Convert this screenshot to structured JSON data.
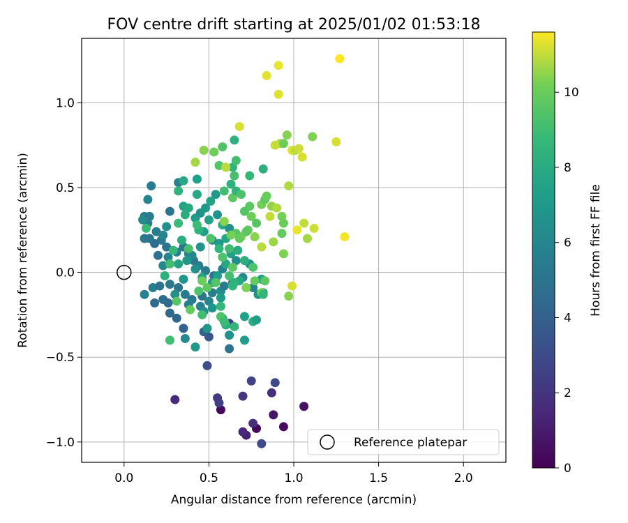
{
  "chart_data": {
    "type": "scatter",
    "title": "FOV centre drift starting at 2025/01/02 01:53:18",
    "xlabel": "Angular distance from reference (arcmin)",
    "ylabel": "Rotation from reference (arcmin)",
    "xlim": [
      -0.25,
      2.25
    ],
    "ylim": [
      -1.12,
      1.38
    ],
    "xticks": [
      0.0,
      0.5,
      1.0,
      1.5,
      2.0
    ],
    "xtick_labels": [
      "0.0",
      "0.5",
      "1.0",
      "1.5",
      "2.0"
    ],
    "yticks": [
      -1.0,
      -0.5,
      0.0,
      0.5,
      1.0
    ],
    "ytick_labels": [
      "−1.0",
      "−0.5",
      "0.0",
      "0.5",
      "1.0"
    ],
    "grid": true,
    "legend": {
      "entries": [
        "Reference platepar"
      ],
      "placement": "lower-right"
    },
    "reference_point": {
      "x": 0.0,
      "y": 0.0,
      "marker": "open-circle"
    },
    "colorbar": {
      "label": "Hours from first FF file",
      "colormap": "viridis",
      "range": [
        0,
        11.6
      ],
      "ticks": [
        0,
        2,
        4,
        6,
        8,
        10
      ],
      "tick_labels": [
        "0",
        "2",
        "4",
        "6",
        "8",
        "10"
      ]
    },
    "points": [
      {
        "x": 0.57,
        "y": -0.81,
        "c": 0.3
      },
      {
        "x": 0.78,
        "y": -0.92,
        "c": 0.2
      },
      {
        "x": 0.94,
        "y": -0.91,
        "c": 0.4
      },
      {
        "x": 1.06,
        "y": -0.79,
        "c": 0.6
      },
      {
        "x": 0.88,
        "y": -0.84,
        "c": 0.8
      },
      {
        "x": 0.72,
        "y": -0.96,
        "c": 1.2
      },
      {
        "x": 0.7,
        "y": -0.94,
        "c": 1.5
      },
      {
        "x": 0.76,
        "y": -0.89,
        "c": 1.7
      },
      {
        "x": 0.3,
        "y": -0.75,
        "c": 1.6
      },
      {
        "x": 0.87,
        "y": -0.71,
        "c": 1.8
      },
      {
        "x": 0.7,
        "y": -0.73,
        "c": 2.0
      },
      {
        "x": 0.55,
        "y": -0.74,
        "c": 2.3
      },
      {
        "x": 0.56,
        "y": -0.77,
        "c": 2.5
      },
      {
        "x": 0.75,
        "y": -0.64,
        "c": 2.6
      },
      {
        "x": 0.89,
        "y": -0.65,
        "c": 2.9
      },
      {
        "x": 0.81,
        "y": -1.01,
        "c": 3.0
      },
      {
        "x": 0.49,
        "y": -0.55,
        "c": 3.1
      },
      {
        "x": 0.62,
        "y": -0.3,
        "c": 2.4
      },
      {
        "x": 0.5,
        "y": -0.38,
        "c": 3.6
      },
      {
        "x": 0.47,
        "y": -0.35,
        "c": 4.1
      },
      {
        "x": 0.35,
        "y": -0.33,
        "c": 4.0
      },
      {
        "x": 0.62,
        "y": -0.45,
        "c": 4.9
      },
      {
        "x": 0.31,
        "y": -0.27,
        "c": 4.3
      },
      {
        "x": 0.27,
        "y": -0.24,
        "c": 4.5
      },
      {
        "x": 0.26,
        "y": -0.18,
        "c": 4.6
      },
      {
        "x": 0.18,
        "y": -0.18,
        "c": 4.6
      },
      {
        "x": 0.23,
        "y": -0.16,
        "c": 4.7
      },
      {
        "x": 0.12,
        "y": -0.13,
        "c": 5.8
      },
      {
        "x": 0.17,
        "y": -0.09,
        "c": 5.5
      },
      {
        "x": 0.21,
        "y": -0.08,
        "c": 4.9
      },
      {
        "x": 0.27,
        "y": -0.07,
        "c": 5.2
      },
      {
        "x": 0.32,
        "y": -0.09,
        "c": 5.0
      },
      {
        "x": 0.36,
        "y": -0.13,
        "c": 5.4
      },
      {
        "x": 0.4,
        "y": -0.16,
        "c": 5.2
      },
      {
        "x": 0.38,
        "y": -0.19,
        "c": 5.6
      },
      {
        "x": 0.45,
        "y": -0.2,
        "c": 5.8
      },
      {
        "x": 0.46,
        "y": -0.14,
        "c": 5.1
      },
      {
        "x": 0.5,
        "y": -0.17,
        "c": 6.0
      },
      {
        "x": 0.52,
        "y": -0.12,
        "c": 5.6
      },
      {
        "x": 0.57,
        "y": -0.11,
        "c": 6.3
      },
      {
        "x": 0.59,
        "y": -0.08,
        "c": 5.4
      },
      {
        "x": 0.64,
        "y": -0.06,
        "c": 5.8
      },
      {
        "x": 0.7,
        "y": -0.03,
        "c": 6.2
      },
      {
        "x": 0.76,
        "y": -0.09,
        "c": 5.9
      },
      {
        "x": 0.79,
        "y": -0.13,
        "c": 6.7
      },
      {
        "x": 0.82,
        "y": -0.12,
        "c": 7.1
      },
      {
        "x": 0.81,
        "y": -0.04,
        "c": 7.3
      },
      {
        "x": 0.74,
        "y": 0.05,
        "c": 6.8
      },
      {
        "x": 0.66,
        "y": 0.07,
        "c": 6.3
      },
      {
        "x": 0.58,
        "y": 0.02,
        "c": 5.7
      },
      {
        "x": 0.53,
        "y": -0.02,
        "c": 5.0
      },
      {
        "x": 0.48,
        "y": 0.01,
        "c": 5.3
      },
      {
        "x": 0.44,
        "y": 0.04,
        "c": 5.5
      },
      {
        "x": 0.41,
        "y": 0.07,
        "c": 5.2
      },
      {
        "x": 0.38,
        "y": 0.11,
        "c": 5.8
      },
      {
        "x": 0.35,
        "y": 0.15,
        "c": 5.1
      },
      {
        "x": 0.31,
        "y": 0.12,
        "c": 5.6
      },
      {
        "x": 0.26,
        "y": 0.09,
        "c": 5.9
      },
      {
        "x": 0.23,
        "y": 0.04,
        "c": 6.1
      },
      {
        "x": 0.2,
        "y": 0.1,
        "c": 4.8
      },
      {
        "x": 0.25,
        "y": 0.15,
        "c": 5.0
      },
      {
        "x": 0.22,
        "y": 0.19,
        "c": 5.3
      },
      {
        "x": 0.18,
        "y": 0.17,
        "c": 4.6
      },
      {
        "x": 0.15,
        "y": 0.2,
        "c": 5.1
      },
      {
        "x": 0.12,
        "y": 0.2,
        "c": 5.2
      },
      {
        "x": 0.19,
        "y": 0.24,
        "c": 5.4
      },
      {
        "x": 0.14,
        "y": 0.29,
        "c": 5.5
      },
      {
        "x": 0.12,
        "y": 0.33,
        "c": 5.6
      },
      {
        "x": 0.15,
        "y": 0.33,
        "c": 5.3
      },
      {
        "x": 0.11,
        "y": 0.31,
        "c": 6.2
      },
      {
        "x": 0.13,
        "y": 0.26,
        "c": 8.8
      },
      {
        "x": 0.23,
        "y": 0.22,
        "c": 6.0
      },
      {
        "x": 0.25,
        "y": 0.27,
        "c": 6.4
      },
      {
        "x": 0.27,
        "y": 0.36,
        "c": 5.0
      },
      {
        "x": 0.14,
        "y": 0.43,
        "c": 5.9
      },
      {
        "x": 0.16,
        "y": 0.51,
        "c": 5.4
      },
      {
        "x": 0.32,
        "y": 0.53,
        "c": 5.7
      },
      {
        "x": 0.35,
        "y": 0.54,
        "c": 7.8
      },
      {
        "x": 0.32,
        "y": 0.48,
        "c": 8.4
      },
      {
        "x": 0.35,
        "y": 0.39,
        "c": 7.5
      },
      {
        "x": 0.38,
        "y": 0.38,
        "c": 7.9
      },
      {
        "x": 0.36,
        "y": 0.34,
        "c": 8.1
      },
      {
        "x": 0.42,
        "y": 0.32,
        "c": 7.2
      },
      {
        "x": 0.45,
        "y": 0.35,
        "c": 6.6
      },
      {
        "x": 0.43,
        "y": 0.46,
        "c": 7.8
      },
      {
        "x": 0.43,
        "y": 0.55,
        "c": 7.4
      },
      {
        "x": 0.48,
        "y": 0.38,
        "c": 7.0
      },
      {
        "x": 0.51,
        "y": 0.42,
        "c": 7.6
      },
      {
        "x": 0.54,
        "y": 0.46,
        "c": 7.1
      },
      {
        "x": 0.5,
        "y": 0.31,
        "c": 7.4
      },
      {
        "x": 0.55,
        "y": 0.34,
        "c": 6.7
      },
      {
        "x": 0.58,
        "y": 0.28,
        "c": 7.9
      },
      {
        "x": 0.62,
        "y": 0.26,
        "c": 6.5
      },
      {
        "x": 0.6,
        "y": 0.2,
        "c": 7.7
      },
      {
        "x": 0.56,
        "y": 0.17,
        "c": 7.0
      },
      {
        "x": 0.52,
        "y": 0.19,
        "c": 6.4
      },
      {
        "x": 0.47,
        "y": 0.24,
        "c": 7.3
      },
      {
        "x": 0.45,
        "y": 0.15,
        "c": 6.8
      },
      {
        "x": 0.4,
        "y": 0.1,
        "c": 6.1
      },
      {
        "x": 0.37,
        "y": 0.07,
        "c": 6.9
      },
      {
        "x": 0.42,
        "y": 0.02,
        "c": 6.6
      },
      {
        "x": 0.46,
        "y": -0.03,
        "c": 7.5
      },
      {
        "x": 0.52,
        "y": -0.06,
        "c": 6.9
      },
      {
        "x": 0.55,
        "y": -0.02,
        "c": 7.2
      },
      {
        "x": 0.6,
        "y": 0.05,
        "c": 7.8
      },
      {
        "x": 0.63,
        "y": 0.11,
        "c": 7.4
      },
      {
        "x": 0.67,
        "y": 0.13,
        "c": 8.0
      },
      {
        "x": 0.71,
        "y": 0.07,
        "c": 8.2
      },
      {
        "x": 0.68,
        "y": -0.05,
        "c": 7.9
      },
      {
        "x": 0.64,
        "y": -0.08,
        "c": 8.5
      },
      {
        "x": 0.57,
        "y": -0.15,
        "c": 7.1
      },
      {
        "x": 0.52,
        "y": -0.21,
        "c": 6.8
      },
      {
        "x": 0.58,
        "y": -0.27,
        "c": 7.7
      },
      {
        "x": 0.6,
        "y": -0.31,
        "c": 8.2
      },
      {
        "x": 0.65,
        "y": -0.32,
        "c": 8.6
      },
      {
        "x": 0.71,
        "y": -0.26,
        "c": 7.4
      },
      {
        "x": 0.76,
        "y": -0.29,
        "c": 8.1
      },
      {
        "x": 0.78,
        "y": -0.28,
        "c": 7.3
      },
      {
        "x": 0.71,
        "y": -0.4,
        "c": 7.2
      },
      {
        "x": 0.62,
        "y": -0.37,
        "c": 6.6
      },
      {
        "x": 0.49,
        "y": -0.33,
        "c": 6.9
      },
      {
        "x": 0.47,
        "y": -0.23,
        "c": 6.3
      },
      {
        "x": 0.42,
        "y": -0.44,
        "c": 7.0
      },
      {
        "x": 0.36,
        "y": -0.39,
        "c": 6.2
      },
      {
        "x": 0.27,
        "y": -0.4,
        "c": 9.0
      },
      {
        "x": 0.3,
        "y": -0.13,
        "c": 6.5
      },
      {
        "x": 0.35,
        "y": -0.04,
        "c": 6.8
      },
      {
        "x": 0.32,
        "y": 0.05,
        "c": 7.6
      },
      {
        "x": 0.24,
        "y": -0.02,
        "c": 8.3
      },
      {
        "x": 0.27,
        "y": 0.05,
        "c": 9.1
      },
      {
        "x": 0.29,
        "y": 0.13,
        "c": 8.7
      },
      {
        "x": 0.38,
        "y": 0.14,
        "c": 9.2
      },
      {
        "x": 0.34,
        "y": 0.19,
        "c": 8.1
      },
      {
        "x": 0.32,
        "y": 0.29,
        "c": 8.8
      },
      {
        "x": 0.44,
        "y": 0.25,
        "c": 8.4
      },
      {
        "x": 0.43,
        "y": 0.28,
        "c": 8.9
      },
      {
        "x": 0.51,
        "y": 0.2,
        "c": 9.4
      },
      {
        "x": 0.56,
        "y": 0.14,
        "c": 8.6
      },
      {
        "x": 0.62,
        "y": 0.14,
        "c": 9.0
      },
      {
        "x": 0.58,
        "y": 0.09,
        "c": 9.3
      },
      {
        "x": 0.64,
        "y": 0.03,
        "c": 9.7
      },
      {
        "x": 0.62,
        "y": -0.02,
        "c": 9.1
      },
      {
        "x": 0.65,
        "y": -0.06,
        "c": 8.4
      },
      {
        "x": 0.54,
        "y": -0.06,
        "c": 9.5
      },
      {
        "x": 0.49,
        "y": -0.09,
        "c": 9.8
      },
      {
        "x": 0.46,
        "y": -0.05,
        "c": 10.1
      },
      {
        "x": 0.44,
        "y": -0.11,
        "c": 9.3
      },
      {
        "x": 0.46,
        "y": -0.25,
        "c": 9.0
      },
      {
        "x": 0.57,
        "y": -0.2,
        "c": 8.7
      },
      {
        "x": 0.57,
        "y": -0.26,
        "c": 9.4
      },
      {
        "x": 0.59,
        "y": -0.29,
        "c": 8.9
      },
      {
        "x": 0.31,
        "y": -0.17,
        "c": 9.6
      },
      {
        "x": 0.39,
        "y": -0.22,
        "c": 9.9
      },
      {
        "x": 0.64,
        "y": 0.44,
        "c": 9.8
      },
      {
        "x": 0.59,
        "y": 0.48,
        "c": 9.0
      },
      {
        "x": 0.63,
        "y": 0.52,
        "c": 8.3
      },
      {
        "x": 0.66,
        "y": 0.48,
        "c": 8.6
      },
      {
        "x": 0.69,
        "y": 0.46,
        "c": 9.3
      },
      {
        "x": 0.71,
        "y": 0.36,
        "c": 9.5
      },
      {
        "x": 0.74,
        "y": 0.39,
        "c": 9.7
      },
      {
        "x": 0.75,
        "y": 0.33,
        "c": 10.1
      },
      {
        "x": 0.73,
        "y": 0.25,
        "c": 9.9
      },
      {
        "x": 0.69,
        "y": 0.21,
        "c": 10.3
      },
      {
        "x": 0.66,
        "y": 0.23,
        "c": 9.6
      },
      {
        "x": 0.68,
        "y": 0.2,
        "c": 9.9
      },
      {
        "x": 0.63,
        "y": 0.22,
        "c": 10.2
      },
      {
        "x": 0.59,
        "y": 0.3,
        "c": 10.4
      },
      {
        "x": 0.64,
        "y": 0.62,
        "c": 8.6
      },
      {
        "x": 0.66,
        "y": 0.66,
        "c": 9.1
      },
      {
        "x": 0.65,
        "y": 0.57,
        "c": 9.2
      },
      {
        "x": 0.65,
        "y": 0.78,
        "c": 8.3
      },
      {
        "x": 0.56,
        "y": 0.63,
        "c": 9.5
      },
      {
        "x": 0.58,
        "y": 0.74,
        "c": 9.4
      },
      {
        "x": 0.53,
        "y": 0.71,
        "c": 10.1
      },
      {
        "x": 0.47,
        "y": 0.72,
        "c": 10.4
      },
      {
        "x": 0.42,
        "y": 0.65,
        "c": 10.7
      },
      {
        "x": 0.6,
        "y": 0.62,
        "c": 10.9
      },
      {
        "x": 0.68,
        "y": 0.86,
        "c": 11.2
      },
      {
        "x": 0.74,
        "y": 0.57,
        "c": 8.7
      },
      {
        "x": 0.82,
        "y": 0.61,
        "c": 8.2
      },
      {
        "x": 0.78,
        "y": 0.29,
        "c": 9.6
      },
      {
        "x": 0.81,
        "y": 0.4,
        "c": 10.2
      },
      {
        "x": 0.83,
        "y": 0.43,
        "c": 9.8
      },
      {
        "x": 0.84,
        "y": 0.45,
        "c": 10.0
      },
      {
        "x": 0.87,
        "y": 0.39,
        "c": 10.5
      },
      {
        "x": 0.9,
        "y": 0.38,
        "c": 10.8
      },
      {
        "x": 0.86,
        "y": 0.33,
        "c": 11.0
      },
      {
        "x": 0.88,
        "y": 0.18,
        "c": 10.6
      },
      {
        "x": 0.81,
        "y": 0.15,
        "c": 10.9
      },
      {
        "x": 0.77,
        "y": 0.21,
        "c": 10.4
      },
      {
        "x": 0.72,
        "y": 0.24,
        "c": 9.7
      },
      {
        "x": 0.76,
        "y": 0.03,
        "c": 9.3
      },
      {
        "x": 0.77,
        "y": -0.05,
        "c": 9.9
      },
      {
        "x": 0.72,
        "y": -0.09,
        "c": 10.3
      },
      {
        "x": 0.81,
        "y": -0.12,
        "c": 10.1
      },
      {
        "x": 0.82,
        "y": -0.13,
        "c": 8.6
      },
      {
        "x": 0.83,
        "y": -0.05,
        "c": 9.7
      },
      {
        "x": 0.93,
        "y": 0.33,
        "c": 10.2
      },
      {
        "x": 0.94,
        "y": 0.29,
        "c": 10.0
      },
      {
        "x": 0.93,
        "y": 0.23,
        "c": 9.9
      },
      {
        "x": 0.94,
        "y": 0.11,
        "c": 10.3
      },
      {
        "x": 0.97,
        "y": 0.51,
        "c": 10.8
      },
      {
        "x": 0.96,
        "y": 0.81,
        "c": 10.4
      },
      {
        "x": 0.92,
        "y": 0.76,
        "c": 10.8
      },
      {
        "x": 0.94,
        "y": 0.76,
        "c": 10.1
      },
      {
        "x": 0.89,
        "y": 0.75,
        "c": 11.0
      },
      {
        "x": 0.99,
        "y": 0.72,
        "c": 11.3
      },
      {
        "x": 1.01,
        "y": 0.72,
        "c": 10.9
      },
      {
        "x": 1.03,
        "y": 0.73,
        "c": 11.1
      },
      {
        "x": 1.05,
        "y": 0.68,
        "c": 11.2
      },
      {
        "x": 1.11,
        "y": 0.8,
        "c": 10.3
      },
      {
        "x": 1.02,
        "y": 0.25,
        "c": 11.4
      },
      {
        "x": 1.06,
        "y": 0.29,
        "c": 11.0
      },
      {
        "x": 1.08,
        "y": 0.2,
        "c": 10.7
      },
      {
        "x": 1.12,
        "y": 0.26,
        "c": 11.1
      },
      {
        "x": 0.97,
        "y": -0.14,
        "c": 10.4
      },
      {
        "x": 0.99,
        "y": -0.08,
        "c": 11.2
      },
      {
        "x": 0.84,
        "y": 1.16,
        "c": 11.3
      },
      {
        "x": 0.91,
        "y": 1.22,
        "c": 11.4
      },
      {
        "x": 0.91,
        "y": 1.05,
        "c": 11.3
      },
      {
        "x": 1.25,
        "y": 0.77,
        "c": 11.2
      },
      {
        "x": 1.27,
        "y": 1.26,
        "c": 11.6
      },
      {
        "x": 1.3,
        "y": 0.21,
        "c": 11.5
      }
    ]
  }
}
